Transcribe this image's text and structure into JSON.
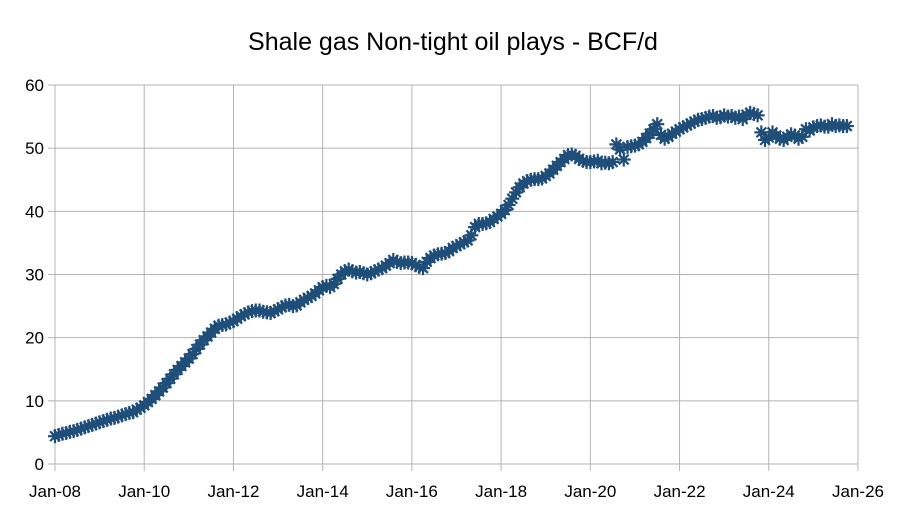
{
  "chart_data": {
    "type": "scatter",
    "title": "Shale gas Non-tight oil plays - BCF/d",
    "xlabel": "",
    "ylabel": "",
    "x_ticks": [
      "Jan-08",
      "Jan-10",
      "Jan-12",
      "Jan-14",
      "Jan-16",
      "Jan-18",
      "Jan-20",
      "Jan-22",
      "Jan-24",
      "Jan-26"
    ],
    "y_ticks": [
      "0",
      "10",
      "20",
      "30",
      "40",
      "50",
      "60"
    ],
    "xlim": [
      "2008-01",
      "2026-01"
    ],
    "ylim": [
      0,
      60
    ],
    "grid": true,
    "legend": "none",
    "marker": "asterisk",
    "colors": {
      "series": "#1f4e79",
      "grid": "#b3b3b3"
    },
    "series": [
      {
        "x": [
          "2008-01",
          "2008-02",
          "2008-03",
          "2008-04",
          "2008-05",
          "2008-06",
          "2008-07",
          "2008-08",
          "2008-09",
          "2008-10",
          "2008-11",
          "2008-12",
          "2009-01",
          "2009-02",
          "2009-03",
          "2009-04",
          "2009-05",
          "2009-06",
          "2009-07",
          "2009-08",
          "2009-09",
          "2009-10",
          "2009-11",
          "2009-12",
          "2010-01",
          "2010-02",
          "2010-03",
          "2010-04",
          "2010-05",
          "2010-06",
          "2010-07",
          "2010-08",
          "2010-09",
          "2010-10",
          "2010-11",
          "2010-12",
          "2011-01",
          "2011-02",
          "2011-03",
          "2011-04",
          "2011-05",
          "2011-06",
          "2011-07",
          "2011-08",
          "2011-09",
          "2011-10",
          "2011-11",
          "2011-12",
          "2012-01",
          "2012-02",
          "2012-03",
          "2012-04",
          "2012-05",
          "2012-06",
          "2012-07",
          "2012-08",
          "2012-09",
          "2012-10",
          "2012-11",
          "2012-12",
          "2013-01",
          "2013-02",
          "2013-03",
          "2013-04",
          "2013-05",
          "2013-06",
          "2013-07",
          "2013-08",
          "2013-09",
          "2013-10",
          "2013-11",
          "2013-12",
          "2014-01",
          "2014-02",
          "2014-03",
          "2014-04",
          "2014-05",
          "2014-06",
          "2014-07",
          "2014-08",
          "2014-09",
          "2014-10",
          "2014-11",
          "2014-12",
          "2015-01",
          "2015-02",
          "2015-03",
          "2015-04",
          "2015-05",
          "2015-06",
          "2015-07",
          "2015-08",
          "2015-09",
          "2015-10",
          "2015-11",
          "2015-12",
          "2016-01",
          "2016-02",
          "2016-03",
          "2016-04",
          "2016-05",
          "2016-06",
          "2016-07",
          "2016-08",
          "2016-09",
          "2016-10",
          "2016-11",
          "2016-12",
          "2017-01",
          "2017-02",
          "2017-03",
          "2017-04",
          "2017-05",
          "2017-06",
          "2017-07",
          "2017-08",
          "2017-09",
          "2017-10",
          "2017-11",
          "2017-12",
          "2018-01",
          "2018-02",
          "2018-03",
          "2018-04",
          "2018-05",
          "2018-06",
          "2018-07",
          "2018-08",
          "2018-09",
          "2018-10",
          "2018-11",
          "2018-12",
          "2019-01",
          "2019-02",
          "2019-03",
          "2019-04",
          "2019-05",
          "2019-06",
          "2019-07",
          "2019-08",
          "2019-09",
          "2019-10",
          "2019-11",
          "2019-12",
          "2020-01",
          "2020-02",
          "2020-03",
          "2020-04",
          "2020-05",
          "2020-06",
          "2020-07",
          "2020-08",
          "2020-09",
          "2020-10",
          "2020-11",
          "2020-12",
          "2021-01",
          "2021-02",
          "2021-03",
          "2021-04",
          "2021-05",
          "2021-06",
          "2021-07",
          "2021-08",
          "2021-09",
          "2021-10",
          "2021-11",
          "2021-12",
          "2022-01",
          "2022-02",
          "2022-03",
          "2022-04",
          "2022-05",
          "2022-06",
          "2022-07",
          "2022-08",
          "2022-09",
          "2022-10",
          "2022-11",
          "2022-12",
          "2023-01",
          "2023-02",
          "2023-03",
          "2023-04",
          "2023-05",
          "2023-06",
          "2023-07",
          "2023-08",
          "2023-09",
          "2023-10",
          "2023-11",
          "2023-12",
          "2024-01",
          "2024-02",
          "2024-03",
          "2024-04",
          "2024-05",
          "2024-06",
          "2024-07",
          "2024-08",
          "2024-09",
          "2024-10",
          "2024-11",
          "2024-12",
          "2025-01",
          "2025-02",
          "2025-03",
          "2025-04",
          "2025-05",
          "2025-06",
          "2025-07",
          "2025-08",
          "2025-09",
          "2025-10"
        ],
        "y": [
          4.4,
          4.6,
          4.8,
          4.9,
          5.1,
          5.2,
          5.4,
          5.6,
          5.8,
          6.0,
          6.2,
          6.4,
          6.6,
          6.8,
          7.0,
          7.2,
          7.3,
          7.5,
          7.7,
          7.9,
          8.1,
          8.2,
          8.6,
          8.9,
          9.3,
          9.8,
          10.3,
          10.9,
          11.5,
          12.1,
          12.8,
          13.5,
          14.2,
          14.9,
          15.5,
          16.1,
          16.7,
          17.4,
          18.2,
          18.9,
          19.6,
          20.2,
          20.8,
          21.4,
          21.9,
          22.0,
          22.1,
          22.4,
          22.6,
          23.0,
          23.4,
          23.7,
          24.0,
          24.2,
          24.3,
          24.3,
          24.1,
          24.0,
          23.9,
          24.2,
          24.5,
          24.8,
          25.1,
          25.2,
          25.0,
          25.1,
          25.6,
          26.0,
          26.3,
          26.6,
          27.0,
          27.5,
          28.0,
          28.2,
          28.0,
          28.5,
          29.3,
          30.0,
          30.5,
          30.8,
          30.5,
          30.3,
          30.4,
          30.2,
          30.0,
          30.2,
          30.5,
          30.8,
          31.0,
          31.4,
          31.8,
          32.3,
          32.0,
          31.8,
          31.9,
          31.9,
          31.8,
          31.5,
          31.2,
          31.0,
          32.0,
          32.6,
          33.0,
          33.2,
          33.3,
          33.4,
          33.7,
          34.2,
          34.5,
          34.8,
          35.1,
          35.4,
          36.2,
          37.5,
          38.0,
          38.0,
          38.1,
          38.3,
          38.8,
          39.2,
          39.6,
          40.2,
          41.0,
          42.0,
          43.0,
          43.8,
          44.4,
          44.8,
          45.0,
          45.1,
          45.1,
          45.2,
          45.6,
          46.0,
          46.6,
          47.2,
          47.8,
          48.3,
          48.9,
          49.0,
          48.8,
          48.3,
          48.0,
          47.8,
          47.8,
          47.9,
          48.0,
          47.6,
          47.7,
          47.6,
          47.8,
          50.6,
          49.8,
          48.2,
          50.2,
          50.3,
          50.4,
          50.6,
          51.0,
          51.6,
          52.3,
          53.0,
          53.8,
          52.1,
          51.5,
          51.8,
          52.3,
          52.6,
          53.0,
          53.3,
          53.6,
          53.9,
          54.2,
          54.5,
          54.6,
          54.8,
          55.0,
          55.1,
          54.8,
          54.9,
          55.2,
          55.0,
          55.1,
          54.8,
          55.0,
          54.6,
          55.3,
          55.6,
          55.4,
          55.2,
          52.5,
          51.3,
          51.7,
          52.5,
          52.0,
          51.5,
          51.3,
          51.8,
          52.2,
          52.0,
          51.5,
          51.8,
          53.0,
          52.8,
          53.3,
          53.5,
          53.6,
          53.4,
          53.4,
          53.8,
          53.5,
          53.6,
          53.5,
          53.5
        ]
      }
    ]
  }
}
